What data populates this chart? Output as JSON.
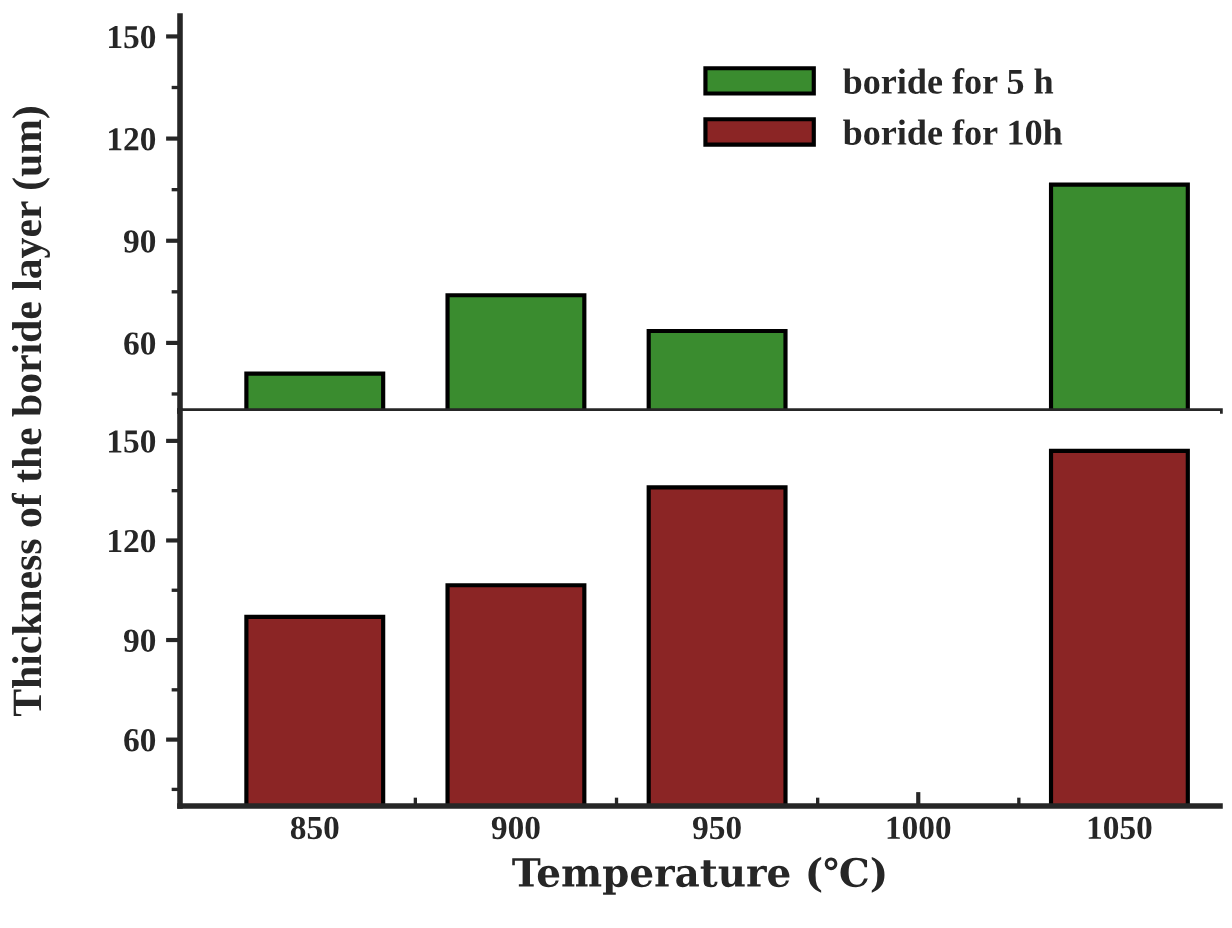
{
  "chart_data": [
    {
      "type": "bar",
      "categories": [
        "850",
        "900",
        "950",
        "1000",
        "1050"
      ],
      "ylabel": "Thickness of the boride layer (um)",
      "series": [
        {
          "name": "boride for 5 h",
          "color": "#3a8c2f",
          "values": [
            51,
            74,
            63.5,
            null,
            106.5
          ]
        },
        {
          "name": "boride for 10h",
          "color": "#8b2525",
          "values": [
            null,
            null,
            null,
            null,
            null
          ]
        }
      ],
      "ylim": [
        40,
        156
      ],
      "yticks": [
        60,
        90,
        120,
        150
      ],
      "legend": "top right",
      "tick_labels": "y"
    },
    {
      "type": "bar",
      "categories": [
        "850",
        "900",
        "950",
        "1000",
        "1050"
      ],
      "xlabel": "Temperature (℃)",
      "series": [
        {
          "color": "#8b2525",
          "values": [
            97,
            106.5,
            136,
            null,
            147
          ]
        }
      ],
      "ylim": [
        40,
        159
      ],
      "yticks": [
        60,
        90,
        120,
        150
      ]
    }
  ]
}
